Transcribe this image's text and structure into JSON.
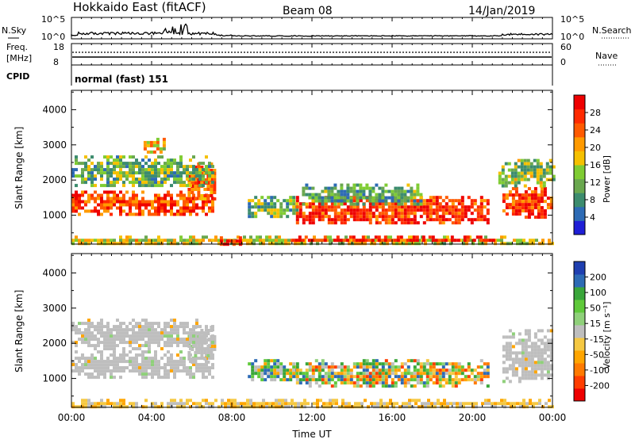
{
  "header": {
    "station": "Hokkaido East (fitACF)",
    "beam": "Beam 08",
    "date": "14/Jan/2019"
  },
  "nsky_panel": {
    "label": "N.Sky",
    "right_label": "N.Search",
    "left_ticks": [
      "10^5",
      "10^0"
    ],
    "right_ticks": [
      "10^5",
      "10^0"
    ]
  },
  "freq_panel": {
    "label_line1": "Freq.",
    "label_line2": "[MHz]",
    "right_label": "Nave",
    "left_ticks": [
      "18",
      "8"
    ],
    "right_ticks": [
      "60",
      "0"
    ]
  },
  "cpid_panel": {
    "label": "CPID",
    "mode": "normal (fast) 151"
  },
  "chart_data": [
    {
      "type": "heatmap",
      "name": "power",
      "ylabel": "Slant Range [km]",
      "yticks": [
        1000,
        2000,
        3000,
        4000
      ],
      "ylim": [
        180,
        4550
      ],
      "xlim_hours": [
        0,
        24
      ],
      "colorbar": {
        "label": "Power [dB]",
        "range": [
          0,
          32
        ],
        "ticks": [
          "4",
          "8",
          "12",
          "16",
          "20",
          "24",
          "28"
        ],
        "colors": [
          "#1f1fd6",
          "#2d6bb5",
          "#3c8c6e",
          "#6aa84f",
          "#7fcc33",
          "#f5c000",
          "#ff9a00",
          "#ff5a00",
          "#ff2a00",
          "#ee0000"
        ]
      },
      "echo_regions": [
        {
          "t": [
            0.0,
            7.0
          ],
          "r": [
            1000,
            1700
          ],
          "level": 0.85
        },
        {
          "t": [
            5.8,
            7.2
          ],
          "r": [
            1500,
            2500
          ],
          "level": 0.75
        },
        {
          "t": [
            0.0,
            7.0
          ],
          "r": [
            1850,
            2700
          ],
          "level": 0.35
        },
        {
          "t": [
            3.6,
            4.7
          ],
          "r": [
            2800,
            3200
          ],
          "level": 0.6
        },
        {
          "t": [
            8.8,
            11.2
          ],
          "r": [
            950,
            1550
          ],
          "level": 0.35
        },
        {
          "t": [
            11.2,
            20.8
          ],
          "r": [
            750,
            1550
          ],
          "level": 0.9
        },
        {
          "t": [
            11.5,
            17.5
          ],
          "r": [
            1300,
            1900
          ],
          "level": 0.3
        },
        {
          "t": [
            21.5,
            24.0
          ],
          "r": [
            950,
            1800
          ],
          "level": 0.85
        },
        {
          "t": [
            21.3,
            24.0
          ],
          "r": [
            1800,
            2600
          ],
          "level": 0.4
        },
        {
          "t": [
            0.0,
            24.0
          ],
          "r": [
            180,
            420
          ],
          "level": 0.5
        },
        {
          "t": [
            7.4,
            8.4
          ],
          "r": [
            200,
            400
          ],
          "level": 0.95
        },
        {
          "t": [
            11.0,
            21.0
          ],
          "r": [
            250,
            420
          ],
          "level": 0.95
        }
      ]
    },
    {
      "type": "heatmap",
      "name": "velocity",
      "ylabel": "Slant Range [km]",
      "yticks": [
        1000,
        2000,
        3000,
        4000
      ],
      "ylim": [
        180,
        4550
      ],
      "xlim_hours": [
        0,
        24
      ],
      "xticks": [
        "00:00",
        "04:00",
        "08:00",
        "12:00",
        "16:00",
        "20:00",
        "00:00"
      ],
      "xlabel": "Time UT",
      "colorbar": {
        "label": "Velocity [m s⁻¹]",
        "ticks": [
          "-200",
          "-100",
          "-50",
          "-15",
          "15",
          "50",
          "100",
          "200"
        ],
        "colors": [
          "#ee0000",
          "#ff3d00",
          "#ff7a00",
          "#ffa500",
          "#f5c842",
          "#bebebe",
          "#8fd07a",
          "#5fc93a",
          "#3aa63a",
          "#2d6bb5",
          "#1f3fb0"
        ]
      },
      "echo_regions": [
        {
          "t": [
            0.0,
            7.0
          ],
          "r": [
            1000,
            1800
          ],
          "class": "ground"
        },
        {
          "t": [
            5.8,
            7.2
          ],
          "r": [
            1500,
            2500
          ],
          "class": "ground"
        },
        {
          "t": [
            0.0,
            7.0
          ],
          "r": [
            1850,
            2700
          ],
          "class": "ground"
        },
        {
          "t": [
            8.8,
            11.2
          ],
          "r": [
            950,
            1550
          ],
          "class": "mixed"
        },
        {
          "t": [
            11.2,
            20.8
          ],
          "r": [
            750,
            1550
          ],
          "class": "flow"
        },
        {
          "t": [
            21.5,
            24.0
          ],
          "r": [
            950,
            2400
          ],
          "class": "ground"
        },
        {
          "t": [
            0.0,
            24.0
          ],
          "r": [
            180,
            420
          ],
          "class": "near"
        }
      ]
    }
  ]
}
